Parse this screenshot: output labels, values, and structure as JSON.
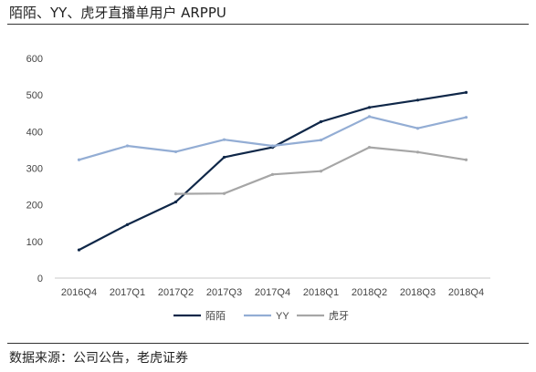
{
  "header": {
    "title": "陌陌、YY、虎牙直播单用户 ARPPU"
  },
  "footer": {
    "source": "数据来源：公司公告，老虎证券"
  },
  "chart_data": {
    "type": "line",
    "title": "陌陌、YY、虎牙直播单用户 ARPPU",
    "xlabel": "",
    "ylabel": "",
    "categories": [
      "2016Q4",
      "2017Q1",
      "2017Q2",
      "2017Q3",
      "2017Q4",
      "2018Q1",
      "2018Q2",
      "2018Q3",
      "2018Q4"
    ],
    "ylim": [
      0,
      600
    ],
    "yticks": [
      0,
      100,
      200,
      300,
      400,
      500,
      600
    ],
    "grid": false,
    "legend_position": "bottom",
    "series": [
      {
        "name": "陌陌",
        "color": "#0f2748",
        "values": [
          77,
          146,
          208,
          330,
          357,
          427,
          466,
          486,
          507
        ]
      },
      {
        "name": "YY",
        "color": "#93add4",
        "values": [
          323,
          361,
          345,
          378,
          361,
          377,
          441,
          409,
          439
        ]
      },
      {
        "name": "虎牙",
        "color": "#a6a6a6",
        "values": [
          null,
          null,
          230,
          231,
          283,
          292,
          357,
          344,
          323
        ]
      }
    ]
  }
}
